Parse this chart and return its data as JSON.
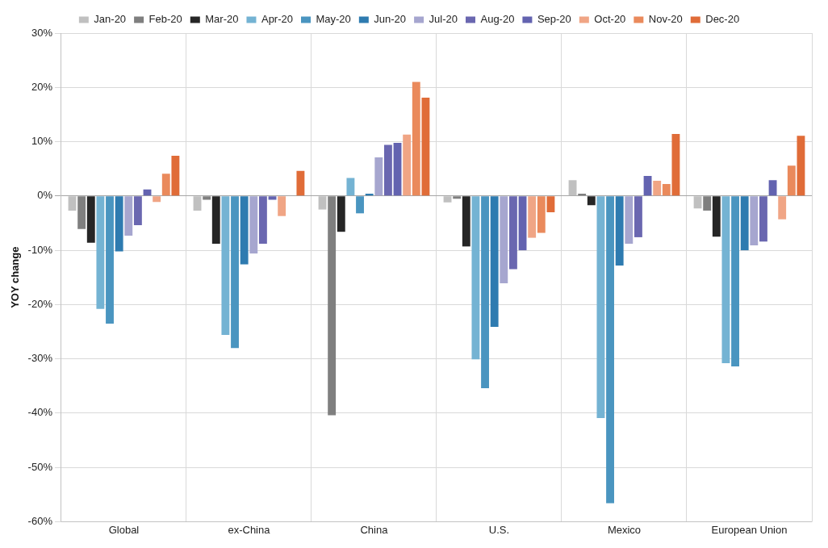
{
  "chart_data": {
    "type": "bar",
    "ylabel": "YOY change",
    "categories": [
      "Global",
      "ex-China",
      "China",
      "U.S.",
      "Mexico",
      "European Union"
    ],
    "series": [
      {
        "name": "Jan-20",
        "color": "#c0c0c0",
        "values": [
          -2.7,
          -2.7,
          -2.5,
          -1.2,
          2.9,
          -2.3
        ]
      },
      {
        "name": "Feb-20",
        "color": "#7f7f7f",
        "values": [
          -6.1,
          -0.7,
          -40.4,
          -0.5,
          0.4,
          -2.7
        ]
      },
      {
        "name": "Mar-20",
        "color": "#262626",
        "values": [
          -8.6,
          -8.8,
          -6.6,
          -9.3,
          -1.7,
          -7.5
        ]
      },
      {
        "name": "Apr-20",
        "color": "#74b3d3",
        "values": [
          -20.8,
          -25.6,
          3.3,
          -30.1,
          -40.9,
          -30.8
        ]
      },
      {
        "name": "May-20",
        "color": "#4a95c0",
        "values": [
          -23.5,
          -28.0,
          -3.2,
          -35.4,
          -56.6,
          -31.4
        ]
      },
      {
        "name": "Jun-20",
        "color": "#2e7bb0",
        "values": [
          -10.2,
          -12.6,
          0.4,
          -24.1,
          -12.8,
          -10.0
        ]
      },
      {
        "name": "Jul-20",
        "color": "#a6a6cf",
        "values": [
          -7.3,
          -10.6,
          7.1,
          -16.1,
          -8.8,
          -9.1
        ]
      },
      {
        "name": "Aug-20",
        "color": "#6a67b0",
        "values": [
          -5.4,
          -8.8,
          9.4,
          -13.5,
          -7.6,
          -8.4
        ]
      },
      {
        "name": "Sep-20",
        "color": "#6363b0",
        "values": [
          1.2,
          -0.7,
          9.8,
          -10.0,
          3.7,
          2.9
        ]
      },
      {
        "name": "Oct-20",
        "color": "#f0a585",
        "values": [
          -1.1,
          -3.7,
          11.3,
          -7.7,
          2.8,
          -4.3
        ]
      },
      {
        "name": "Nov-20",
        "color": "#ea8a5c",
        "values": [
          4.1,
          0,
          21.0,
          -6.8,
          2.2,
          5.6
        ]
      },
      {
        "name": "Dec-20",
        "color": "#e06c38",
        "values": [
          7.4,
          4.6,
          18.1,
          -3.0,
          11.4,
          11.1
        ]
      }
    ],
    "ylim": [
      -60,
      30
    ],
    "yticks": [
      {
        "value": -60,
        "label": "-60%"
      },
      {
        "value": -50,
        "label": "-50%"
      },
      {
        "value": -40,
        "label": "-40%"
      },
      {
        "value": -30,
        "label": "-30%"
      },
      {
        "value": -20,
        "label": "-20%"
      },
      {
        "value": -10,
        "label": "-10%"
      },
      {
        "value": 0,
        "label": "0%"
      },
      {
        "value": 10,
        "label": "10%"
      },
      {
        "value": 20,
        "label": "20%"
      },
      {
        "value": 30,
        "label": "30%"
      }
    ],
    "grid": true,
    "legend": "top"
  }
}
